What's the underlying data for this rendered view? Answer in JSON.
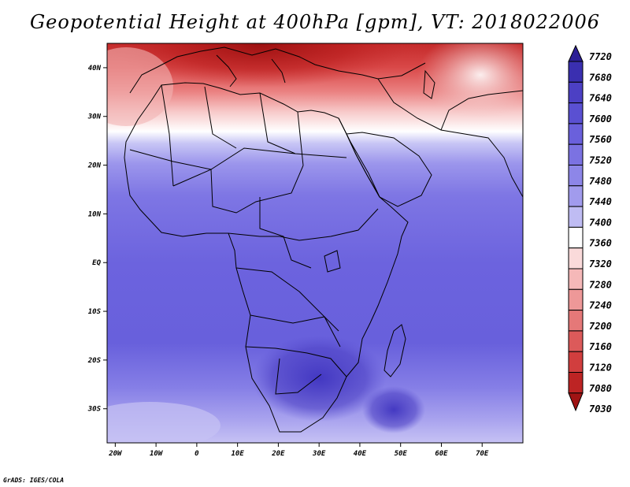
{
  "title": "Geopotential Height at 400hPa [gpm], VT: 2018022006",
  "credit": "GrADS: IGES/COLA",
  "map": {
    "lon_labels": [
      "20W",
      "10W",
      "0",
      "10E",
      "20E",
      "30E",
      "40E",
      "50E",
      "60E",
      "70E"
    ],
    "lat_labels": [
      "40N",
      "30N",
      "20N",
      "10N",
      "EQ",
      "10S",
      "20S",
      "30S"
    ],
    "lon_range": [
      -22,
      80
    ],
    "lat_range": [
      -37,
      45
    ]
  },
  "colorbar": {
    "levels": [
      "7720",
      "7680",
      "7640",
      "7600",
      "7560",
      "7520",
      "7480",
      "7440",
      "7400",
      "7360",
      "7320",
      "7280",
      "7240",
      "7200",
      "7160",
      "7120",
      "7080",
      "7030"
    ],
    "colors": [
      "#2c1f96",
      "#3a2fb0",
      "#4c40c4",
      "#5a50d2",
      "#6a60dc",
      "#7b72e2",
      "#8d86e8",
      "#a19bed",
      "#bfbcf3",
      "#ffffff",
      "#fadada",
      "#f5b8b8",
      "#ee9898",
      "#e57878",
      "#dc5a5a",
      "#d13e3e",
      "#bd2424",
      "#a01414"
    ]
  }
}
